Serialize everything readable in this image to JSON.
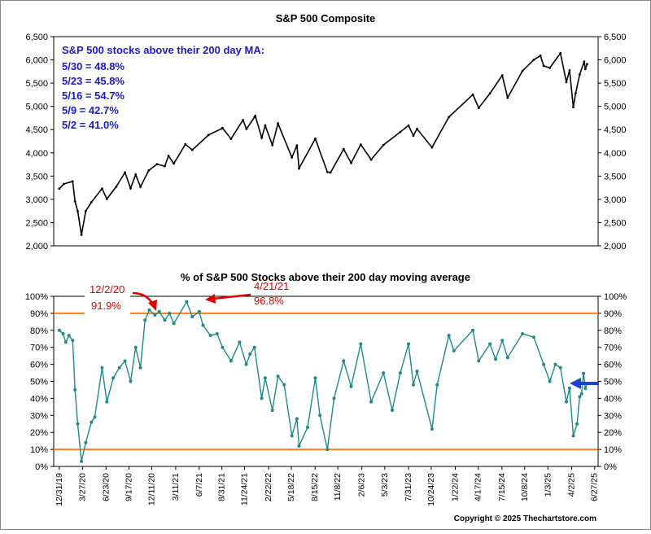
{
  "copyright": "Copyright © 2025 Thechartstore.com",
  "info_box": {
    "title": "S&P 500 stocks above their 200 day MA:",
    "lines": [
      "5/30 = 48.8%",
      "5/23 = 45.8%",
      "5/16 = 54.7%",
      "5/9 = 42.7%",
      "5/2 = 41.0%"
    ]
  },
  "annotations": [
    {
      "date_label": "12/2/20",
      "value_label": "91.9%",
      "color": "#e00000"
    },
    {
      "date_label": "4/21/21",
      "value_label": "96.8%",
      "color": "#e00000"
    }
  ],
  "chart_data": [
    {
      "type": "line",
      "title": "S&P 500 Composite",
      "y_tick_labels": [
        "6,500",
        "6,000",
        "5,500",
        "5,000",
        "4,500",
        "4,000",
        "3,500",
        "3,000",
        "2,500",
        "2,000"
      ],
      "ylim": [
        2000,
        6500
      ],
      "x_range": [
        "2019-12-10",
        "2025-07-10"
      ],
      "grid": false,
      "color": "#000000",
      "points": [
        [
          "2019-12-31",
          3230
        ],
        [
          "2020-01-17",
          3330
        ],
        [
          "2020-02-19",
          3386
        ],
        [
          "2020-02-28",
          2954
        ],
        [
          "2020-03-09",
          2746
        ],
        [
          "2020-03-23",
          2237
        ],
        [
          "2020-04-08",
          2749
        ],
        [
          "2020-04-29",
          2939
        ],
        [
          "2020-06-08",
          3232
        ],
        [
          "2020-06-26",
          3009
        ],
        [
          "2020-07-31",
          3271
        ],
        [
          "2020-09-02",
          3580
        ],
        [
          "2020-09-23",
          3237
        ],
        [
          "2020-10-12",
          3534
        ],
        [
          "2020-10-30",
          3270
        ],
        [
          "2020-11-30",
          3622
        ],
        [
          "2020-12-31",
          3756
        ],
        [
          "2021-01-29",
          3714
        ],
        [
          "2021-02-12",
          3934
        ],
        [
          "2021-03-04",
          3768
        ],
        [
          "2021-04-16",
          4185
        ],
        [
          "2021-05-12",
          4063
        ],
        [
          "2021-07-12",
          4385
        ],
        [
          "2021-08-31",
          4523
        ],
        [
          "2021-09-02",
          4537
        ],
        [
          "2021-10-04",
          4300
        ],
        [
          "2021-11-18",
          4705
        ],
        [
          "2021-12-01",
          4513
        ],
        [
          "2021-12-31",
          4766
        ],
        [
          "2022-01-03",
          4797
        ],
        [
          "2022-01-27",
          4326
        ],
        [
          "2022-02-09",
          4587
        ],
        [
          "2022-03-08",
          4170
        ],
        [
          "2022-03-29",
          4632
        ],
        [
          "2022-05-20",
          3901
        ],
        [
          "2022-06-08",
          4160
        ],
        [
          "2022-06-16",
          3667
        ],
        [
          "2022-08-16",
          4305
        ],
        [
          "2022-09-30",
          3586
        ],
        [
          "2022-10-12",
          3577
        ],
        [
          "2022-11-30",
          4080
        ],
        [
          "2022-12-28",
          3783
        ],
        [
          "2023-02-02",
          4179
        ],
        [
          "2023-03-13",
          3855
        ],
        [
          "2023-04-28",
          4169
        ],
        [
          "2023-06-30",
          4450
        ],
        [
          "2023-07-31",
          4589
        ],
        [
          "2023-08-18",
          4370
        ],
        [
          "2023-09-01",
          4515
        ],
        [
          "2023-10-27",
          4117
        ],
        [
          "2023-12-29",
          4770
        ],
        [
          "2024-03-28",
          5254
        ],
        [
          "2024-04-19",
          4967
        ],
        [
          "2024-05-31",
          5278
        ],
        [
          "2024-07-16",
          5667
        ],
        [
          "2024-08-05",
          5186
        ],
        [
          "2024-09-30",
          5762
        ],
        [
          "2024-11-11",
          6001
        ],
        [
          "2024-12-06",
          6090
        ],
        [
          "2024-12-18",
          5872
        ],
        [
          "2025-01-10",
          5827
        ],
        [
          "2025-02-19",
          6144
        ],
        [
          "2025-03-13",
          5521
        ],
        [
          "2025-03-25",
          5777
        ],
        [
          "2025-04-08",
          4983
        ],
        [
          "2025-04-17",
          5282
        ],
        [
          "2025-05-02",
          5686
        ],
        [
          "2025-05-19",
          5963
        ],
        [
          "2025-05-23",
          5802
        ],
        [
          "2025-05-30",
          5912
        ]
      ]
    },
    {
      "type": "scatter",
      "title": "% of S&P 500 Stocks above their 200 day moving average",
      "y_tick_labels": [
        "100%",
        "90%",
        "80%",
        "70%",
        "60%",
        "50%",
        "40%",
        "30%",
        "20%",
        "10%",
        "0%"
      ],
      "ylim": [
        0,
        100
      ],
      "x_range": [
        "2019-12-10",
        "2025-07-10"
      ],
      "x_tick_labels": [
        "12/31/19",
        "3/27/20",
        "6/23/20",
        "9/17/20",
        "12/11/20",
        "3/11/21",
        "6/7/21",
        "8/31/21",
        "11/24/21",
        "2/22/22",
        "5/18/22",
        "8/15/22",
        "11/8/22",
        "2/6/23",
        "5/3/23",
        "7/31/23",
        "10/24/23",
        "1/22/24",
        "4/17/24",
        "7/15/24",
        "10/8/24",
        "1/3/25",
        "4/2/25",
        "6/27/25"
      ],
      "x_tick_dates": [
        "2019-12-31",
        "2020-03-27",
        "2020-06-23",
        "2020-09-17",
        "2020-12-11",
        "2021-03-11",
        "2021-06-07",
        "2021-08-31",
        "2021-11-24",
        "2022-02-22",
        "2022-05-18",
        "2022-08-15",
        "2022-11-08",
        "2023-02-06",
        "2023-05-03",
        "2023-07-31",
        "2023-10-24",
        "2024-01-22",
        "2024-04-17",
        "2024-07-15",
        "2024-10-08",
        "2025-01-03",
        "2025-04-02",
        "2025-06-27"
      ],
      "reference_lines": [
        {
          "value": 90,
          "color": "#ff7f1a"
        },
        {
          "value": 10,
          "color": "#ff7f1a"
        }
      ],
      "grid": false,
      "color": "#1f8a8a",
      "current_marker": {
        "value": 48.8,
        "color": "#1f3fd6"
      },
      "points": [
        [
          "2019-12-31",
          80
        ],
        [
          "2020-01-14",
          78
        ],
        [
          "2020-01-24",
          73
        ],
        [
          "2020-02-05",
          77
        ],
        [
          "2020-02-19",
          74
        ],
        [
          "2020-02-28",
          45
        ],
        [
          "2020-03-09",
          25
        ],
        [
          "2020-03-23",
          3
        ],
        [
          "2020-04-08",
          14
        ],
        [
          "2020-04-29",
          26
        ],
        [
          "2020-05-12",
          29
        ],
        [
          "2020-06-08",
          58
        ],
        [
          "2020-06-26",
          38
        ],
        [
          "2020-07-20",
          52
        ],
        [
          "2020-08-12",
          58
        ],
        [
          "2020-09-02",
          62
        ],
        [
          "2020-09-23",
          50
        ],
        [
          "2020-10-12",
          70
        ],
        [
          "2020-10-30",
          58
        ],
        [
          "2020-11-16",
          86
        ],
        [
          "2020-12-02",
          91.9
        ],
        [
          "2020-12-23",
          89
        ],
        [
          "2021-01-08",
          91
        ],
        [
          "2021-01-29",
          86
        ],
        [
          "2021-02-16",
          90
        ],
        [
          "2021-03-04",
          84
        ],
        [
          "2021-04-21",
          96.8
        ],
        [
          "2021-05-12",
          88
        ],
        [
          "2021-06-07",
          91
        ],
        [
          "2021-06-21",
          83
        ],
        [
          "2021-07-19",
          77
        ],
        [
          "2021-08-13",
          78
        ],
        [
          "2021-09-02",
          70
        ],
        [
          "2021-10-04",
          62
        ],
        [
          "2021-11-05",
          73
        ],
        [
          "2021-11-30",
          60
        ],
        [
          "2021-12-14",
          66
        ],
        [
          "2021-12-31",
          70
        ],
        [
          "2022-01-27",
          40
        ],
        [
          "2022-02-09",
          52
        ],
        [
          "2022-03-08",
          33
        ],
        [
          "2022-03-29",
          53
        ],
        [
          "2022-04-21",
          48
        ],
        [
          "2022-05-20",
          18
        ],
        [
          "2022-06-08",
          28
        ],
        [
          "2022-06-16",
          12
        ],
        [
          "2022-07-18",
          23
        ],
        [
          "2022-08-16",
          52
        ],
        [
          "2022-09-02",
          30
        ],
        [
          "2022-09-30",
          10
        ],
        [
          "2022-10-25",
          40
        ],
        [
          "2022-11-30",
          62
        ],
        [
          "2022-12-28",
          47
        ],
        [
          "2023-02-02",
          72
        ],
        [
          "2023-03-13",
          38
        ],
        [
          "2023-04-28",
          55
        ],
        [
          "2023-05-31",
          33
        ],
        [
          "2023-06-30",
          55
        ],
        [
          "2023-07-31",
          72
        ],
        [
          "2023-08-18",
          48
        ],
        [
          "2023-09-01",
          56
        ],
        [
          "2023-10-27",
          22
        ],
        [
          "2023-11-15",
          48
        ],
        [
          "2023-12-29",
          77
        ],
        [
          "2024-01-17",
          68
        ],
        [
          "2024-03-28",
          80
        ],
        [
          "2024-04-19",
          62
        ],
        [
          "2024-05-31",
          72
        ],
        [
          "2024-06-21",
          63
        ],
        [
          "2024-07-16",
          74
        ],
        [
          "2024-08-05",
          64
        ],
        [
          "2024-09-30",
          78
        ],
        [
          "2024-11-11",
          76
        ],
        [
          "2024-12-18",
          60
        ],
        [
          "2025-01-10",
          50
        ],
        [
          "2025-01-31",
          60
        ],
        [
          "2025-02-19",
          58
        ],
        [
          "2025-03-13",
          38
        ],
        [
          "2025-03-25",
          46
        ],
        [
          "2025-04-08",
          18
        ],
        [
          "2025-04-22",
          25
        ],
        [
          "2025-05-02",
          41
        ],
        [
          "2025-05-09",
          42.7
        ],
        [
          "2025-05-16",
          54.7
        ],
        [
          "2025-05-23",
          45.8
        ],
        [
          "2025-05-30",
          48.8
        ]
      ]
    }
  ]
}
